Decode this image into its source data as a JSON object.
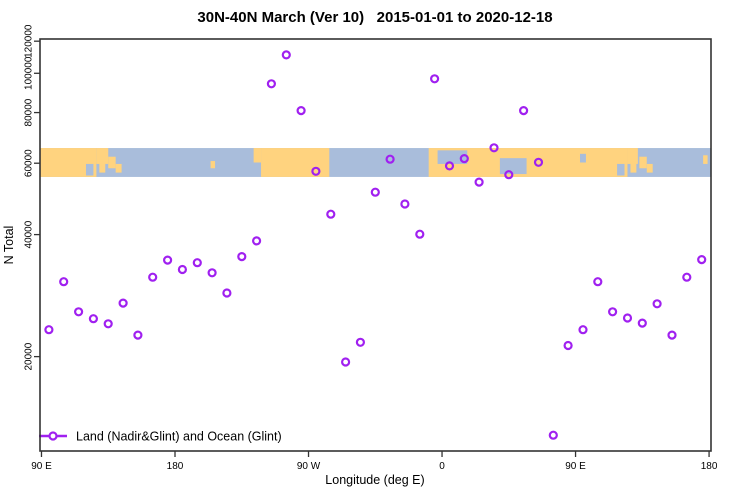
{
  "chart_data": {
    "type": "scatter",
    "title": "30N-40N March (Ver 10)   2015-01-01 to 2020-12-18",
    "xlabel": "Longitude (deg E)",
    "ylabel": "N Total",
    "x_scale": "linear-wrapped-longitude",
    "y_scale": "log",
    "xlim": [
      89,
      541.3
    ],
    "ylim": [
      11700,
      121500
    ],
    "grid": false,
    "x_ticks": [
      {
        "value": 90,
        "label": "90 E"
      },
      {
        "value": 180,
        "label": "180"
      },
      {
        "value": 270,
        "label": "90 W"
      },
      {
        "value": 360,
        "label": "0"
      },
      {
        "value": 450,
        "label": "90 E"
      },
      {
        "value": 540,
        "label": "180"
      }
    ],
    "y_ticks": [
      {
        "value": 20000,
        "label": "20000"
      },
      {
        "value": 40000,
        "label": "40000"
      },
      {
        "value": 60000,
        "label": "60000"
      },
      {
        "value": 80000,
        "label": "80000"
      },
      {
        "value": 100000,
        "label": "100000"
      },
      {
        "value": 120000,
        "label": "120000"
      }
    ],
    "legend_label": "Land (Nadir&Glint) and Ocean (Glint)",
    "legend_position": "bottom-left-inside",
    "series": [
      {
        "name": "Land (Nadir&Glint) and Ocean (Glint)",
        "color": "#A020F0",
        "marker": "open-circle",
        "points": [
          {
            "x": 95,
            "y": 23300
          },
          {
            "x": 105,
            "y": 30600
          },
          {
            "x": 115,
            "y": 25800
          },
          {
            "x": 125,
            "y": 24800
          },
          {
            "x": 135,
            "y": 24100
          },
          {
            "x": 145,
            "y": 27100
          },
          {
            "x": 155,
            "y": 22600
          },
          {
            "x": 165,
            "y": 31400
          },
          {
            "x": 175,
            "y": 34600
          },
          {
            "x": 185,
            "y": 32800
          },
          {
            "x": 195,
            "y": 34100
          },
          {
            "x": 205,
            "y": 32200
          },
          {
            "x": 215,
            "y": 28700
          },
          {
            "x": 225,
            "y": 35300
          },
          {
            "x": 235,
            "y": 38600
          },
          {
            "x": 245,
            "y": 94200
          },
          {
            "x": 255,
            "y": 111000
          },
          {
            "x": 265,
            "y": 80900
          },
          {
            "x": 275,
            "y": 57300
          },
          {
            "x": 285,
            "y": 44900
          },
          {
            "x": 295,
            "y": 19400
          },
          {
            "x": 305,
            "y": 21700
          },
          {
            "x": 315,
            "y": 50900
          },
          {
            "x": 325,
            "y": 61400
          },
          {
            "x": 335,
            "y": 47600
          },
          {
            "x": 345,
            "y": 40100
          },
          {
            "x": 355,
            "y": 96900
          },
          {
            "x": 365,
            "y": 59100
          },
          {
            "x": 375,
            "y": 61600
          },
          {
            "x": 385,
            "y": 53900
          },
          {
            "x": 395,
            "y": 65500
          },
          {
            "x": 405,
            "y": 56200
          },
          {
            "x": 415,
            "y": 80900
          },
          {
            "x": 425,
            "y": 60300
          },
          {
            "x": 435,
            "y": 12800
          },
          {
            "x": 445,
            "y": 21300
          },
          {
            "x": 455,
            "y": 23300
          },
          {
            "x": 465,
            "y": 30600
          },
          {
            "x": 475,
            "y": 25800
          },
          {
            "x": 485,
            "y": 24900
          },
          {
            "x": 495,
            "y": 24200
          },
          {
            "x": 505,
            "y": 27000
          },
          {
            "x": 515,
            "y": 22600
          },
          {
            "x": 525,
            "y": 31400
          },
          {
            "x": 535,
            "y": 34700
          }
        ]
      }
    ],
    "map_band": {
      "description": "world land/ocean strip drawn across plot at N Total band",
      "y_range": [
        55500,
        65400
      ],
      "ocean_color": "#A9BDDB",
      "land_color": "#FFD37F",
      "land_segments": [
        {
          "x0": 89,
          "x1": 127,
          "y0": 0,
          "y1": 1
        },
        {
          "x0": 127,
          "x1": 135,
          "y0": 0,
          "y1": 0.55
        },
        {
          "x0": 129,
          "x1": 133,
          "y0": 0.5,
          "y1": 0.85
        },
        {
          "x0": 135,
          "x1": 140,
          "y0": 0.3,
          "y1": 0.7
        },
        {
          "x0": 140,
          "x1": 144,
          "y0": 0.55,
          "y1": 0.85
        },
        {
          "x0": 204,
          "x1": 207,
          "y0": 0.45,
          "y1": 0.7
        },
        {
          "x0": 233,
          "x1": 238,
          "y0": 0,
          "y1": 0.5
        },
        {
          "x0": 238,
          "x1": 284,
          "y0": 0,
          "y1": 1
        },
        {
          "x0": 351,
          "x1": 485,
          "y0": 0,
          "y1": 1
        },
        {
          "x0": 485,
          "x1": 492,
          "y0": 0,
          "y1": 0.55
        },
        {
          "x0": 487,
          "x1": 491,
          "y0": 0.5,
          "y1": 0.85
        },
        {
          "x0": 493,
          "x1": 498,
          "y0": 0.3,
          "y1": 0.7
        },
        {
          "x0": 498,
          "x1": 502,
          "y0": 0.55,
          "y1": 0.85
        },
        {
          "x0": 536,
          "x1": 539,
          "y0": 0.25,
          "y1": 0.55
        }
      ],
      "sea_patches": [
        {
          "x0": 357,
          "x1": 377,
          "y0": 0.08,
          "y1": 0.55
        },
        {
          "x0": 399,
          "x1": 417,
          "y0": 0.35,
          "y1": 0.9
        },
        {
          "x0": 453,
          "x1": 457,
          "y0": 0.2,
          "y1": 0.5
        },
        {
          "x0": 120,
          "x1": 125,
          "y0": 0.55,
          "y1": 0.95
        },
        {
          "x0": 478,
          "x1": 483,
          "y0": 0.55,
          "y1": 0.95
        }
      ]
    },
    "colors": {
      "marker": "#A020F0",
      "ocean": "#A9BDDB",
      "land": "#FFD37F",
      "axis": "#333333",
      "text": "#000000",
      "background": "#FFFFFF"
    }
  }
}
